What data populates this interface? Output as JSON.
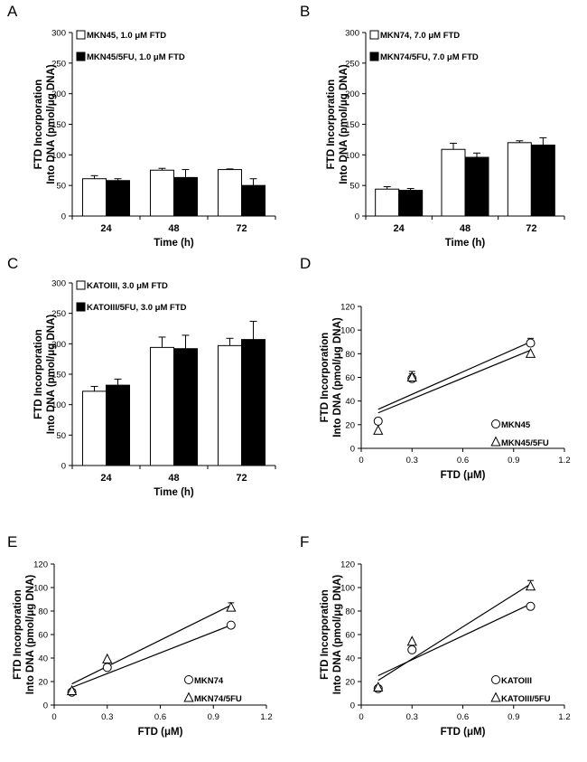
{
  "chart_data": [
    {
      "panel": "A",
      "type": "bar",
      "categories": [
        "24",
        "48",
        "72"
      ],
      "series": [
        {
          "name": "MKN45, 1.0 μM FTD",
          "color": "#ffffff",
          "values": [
            61,
            75,
            76
          ],
          "errors": [
            5,
            3,
            1
          ]
        },
        {
          "name": "MKN45/5FU, 1.0 μM FTD",
          "color": "#000000",
          "values": [
            58,
            63,
            50
          ],
          "errors": [
            3,
            13,
            11
          ]
        }
      ],
      "xlabel": "Time (h)",
      "ylabel": [
        "FTD Incorporation",
        "Into DNA (pmol/μg DNA)"
      ],
      "ylim": [
        0,
        300
      ],
      "yticks": [
        0,
        50,
        100,
        150,
        200,
        250,
        300
      ]
    },
    {
      "panel": "B",
      "type": "bar",
      "categories": [
        "24",
        "48",
        "72"
      ],
      "series": [
        {
          "name": "MKN74, 7.0 μM FTD",
          "color": "#ffffff",
          "values": [
            44,
            109,
            120
          ],
          "errors": [
            4,
            10,
            3
          ]
        },
        {
          "name": "MKN74/5FU, 7.0 μM FTD",
          "color": "#000000",
          "values": [
            42,
            96,
            116
          ],
          "errors": [
            3,
            7,
            12
          ]
        }
      ],
      "xlabel": "Time (h)",
      "ylabel": [
        "FTD Incorporation",
        "Into DNA (pmol/μg DNA)"
      ],
      "ylim": [
        0,
        300
      ],
      "yticks": [
        0,
        50,
        100,
        150,
        200,
        250,
        300
      ]
    },
    {
      "panel": "C",
      "type": "bar",
      "categories": [
        "24",
        "48",
        "72"
      ],
      "series": [
        {
          "name": "KATOIII, 3.0 μM FTD",
          "color": "#ffffff",
          "values": [
            122,
            194,
            197
          ],
          "errors": [
            8,
            17,
            12
          ]
        },
        {
          "name": "KATOIII/5FU, 3.0 μM FTD",
          "color": "#000000",
          "values": [
            132,
            192,
            207
          ],
          "errors": [
            10,
            22,
            30
          ]
        }
      ],
      "xlabel": "Time (h)",
      "ylabel": [
        "FTD Incorporation",
        "Into DNA (pmol/μg DNA)"
      ],
      "ylim": [
        0,
        300
      ],
      "yticks": [
        0,
        50,
        100,
        150,
        200,
        250,
        300
      ]
    },
    {
      "panel": "D",
      "type": "scatter",
      "series": [
        {
          "name": "MKN45",
          "marker": "circle",
          "x": [
            0.1,
            0.3,
            1.0
          ],
          "y": [
            23,
            59,
            89
          ],
          "errors": [
            0,
            4,
            4
          ],
          "fit": [
            [
              0.1,
              33
            ],
            [
              1.0,
              90
            ]
          ]
        },
        {
          "name": "MKN45/5FU",
          "marker": "triangle",
          "x": [
            0.1,
            0.3,
            1.0
          ],
          "y": [
            15,
            60,
            80
          ],
          "errors": [
            0,
            5,
            0
          ],
          "fit": [
            [
              0.1,
              30
            ],
            [
              1.0,
              83
            ]
          ]
        }
      ],
      "xlabel": "FTD (μM)",
      "ylabel": [
        "FTD Incorporation",
        "Into DNA (pmol/μg DNA)"
      ],
      "xlim": [
        0,
        1.2
      ],
      "xticks": [
        "0",
        "0.3",
        "0.6",
        "0.9",
        "1.2"
      ],
      "ylim": [
        0,
        120
      ],
      "yticks": [
        0,
        20,
        40,
        60,
        80,
        100,
        120
      ]
    },
    {
      "panel": "E",
      "type": "scatter",
      "series": [
        {
          "name": "MKN74",
          "marker": "circle",
          "x": [
            0.1,
            0.3,
            1.0
          ],
          "y": [
            11,
            32,
            68
          ],
          "errors": [
            2,
            0,
            0
          ],
          "fit": [
            [
              0.1,
              15
            ],
            [
              1.0,
              68
            ]
          ]
        },
        {
          "name": "MKN74/5FU",
          "marker": "triangle",
          "x": [
            0.1,
            0.3,
            1.0
          ],
          "y": [
            12,
            39,
            83
          ],
          "errors": [
            0,
            0,
            4
          ],
          "fit": [
            [
              0.1,
              18
            ],
            [
              1.0,
              85
            ]
          ]
        }
      ],
      "xlabel": "FTD (μM)",
      "ylabel": [
        "FTD Incorporation",
        "Into DNA (pmol/μg DNA)"
      ],
      "xlim": [
        0,
        1.2
      ],
      "xticks": [
        "0",
        "0.3",
        "0.6",
        "0.9",
        "1.2"
      ],
      "ylim": [
        0,
        120
      ],
      "yticks": [
        0,
        20,
        40,
        60,
        80,
        100,
        120
      ]
    },
    {
      "panel": "F",
      "type": "scatter",
      "series": [
        {
          "name": "KATOIII",
          "marker": "circle",
          "x": [
            0.1,
            0.3,
            1.0
          ],
          "y": [
            14,
            47,
            84
          ],
          "errors": [
            2,
            0,
            0
          ],
          "fit": [
            [
              0.1,
              25
            ],
            [
              1.0,
              86
            ]
          ]
        },
        {
          "name": "KATOIII/5FU",
          "marker": "triangle",
          "x": [
            0.1,
            0.3,
            1.0
          ],
          "y": [
            15,
            54,
            101
          ],
          "errors": [
            0,
            0,
            5
          ],
          "fit": [
            [
              0.1,
              21
            ],
            [
              1.0,
              103
            ]
          ]
        }
      ],
      "xlabel": "FTD (μM)",
      "ylabel": [
        "FTD Incorporation",
        "Into DNA (pmol/μg DNA)"
      ],
      "xlim": [
        0,
        1.2
      ],
      "xticks": [
        "0",
        "0.3",
        "0.6",
        "0.9",
        "1.2"
      ],
      "ylim": [
        0,
        120
      ],
      "yticks": [
        0,
        20,
        40,
        60,
        80,
        100,
        120
      ]
    }
  ]
}
